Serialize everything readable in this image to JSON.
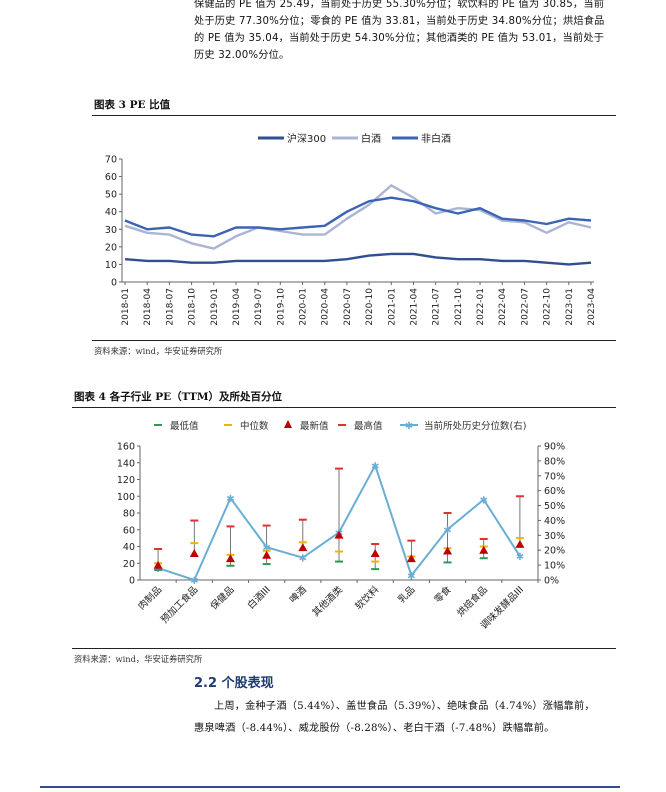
{
  "intro_lines": [
    "保健品的 PE 值为 25.49，当前处于历史 55.30%分位；软饮料的 PE 值为 30.85，当前",
    "处于历史 77.30%分位；零食的 PE 值为 33.81，当前处于历史 34.80%分位；烘焙食品",
    "的 PE 值为 35.04，当前处于历史 54.30%分位；其他酒类的 PE 值为 53.01，当前处于",
    "历史 32.00%分位。"
  ],
  "figure3": {
    "title": "图表 3 PE 比值",
    "source": "资料来源：wind，华安证券研究所",
    "legend": [
      "沪深300",
      "白酒",
      "非白酒"
    ]
  },
  "figure4": {
    "title": "图表 4 各子行业 PE（TTM）及所处百分位",
    "source": "资料来源：wind，华安证券研究所",
    "legend": [
      "最低值",
      "中位数",
      "最新值",
      "最高值",
      "当前所处历史分位数(右)"
    ]
  },
  "section": {
    "number": "2.2",
    "title": "个股表现"
  },
  "body_lines": [
    "上周，金种子酒（5.44%）、盖世食品（5.39%）、绝味食品（4.74%）涨幅靠前，",
    "惠泉啤酒（-8.44%）、威龙股份（-8.28%）、老白干酒（-7.48%）跌幅靠前。"
  ],
  "colors": {
    "hs300": "#2f4f8f",
    "baijiu": "#aab4d4",
    "feibaijiu": "#3c64b4",
    "min": "#2a9a5a",
    "median": "#f0b400",
    "latest": "#c00000",
    "max": "#e03030",
    "pct": "#6aaed6"
  },
  "chart_data": [
    {
      "type": "line",
      "title": "",
      "x": [
        "2018-01",
        "2018-04",
        "2018-07",
        "2018-10",
        "2019-01",
        "2019-04",
        "2019-07",
        "2019-10",
        "2020-01",
        "2020-04",
        "2020-07",
        "2020-10",
        "2021-01",
        "2021-04",
        "2021-07",
        "2021-10",
        "2022-01",
        "2022-04",
        "2022-07",
        "2022-10",
        "2023-01",
        "2023-04"
      ],
      "ylim": [
        0,
        70
      ],
      "yticks": [
        0,
        10,
        20,
        30,
        40,
        50,
        60,
        70
      ],
      "series": [
        {
          "name": "沪深300",
          "values": [
            13,
            12,
            12,
            11,
            11,
            12,
            12,
            12,
            12,
            12,
            13,
            15,
            16,
            16,
            14,
            13,
            13,
            12,
            12,
            11,
            10,
            11
          ]
        },
        {
          "name": "白酒",
          "values": [
            32,
            28,
            27,
            22,
            19,
            26,
            31,
            29,
            27,
            27,
            36,
            44,
            55,
            48,
            39,
            42,
            41,
            35,
            34,
            28,
            34,
            31
          ]
        },
        {
          "name": "非白酒",
          "values": [
            35,
            30,
            31,
            27,
            26,
            31,
            31,
            30,
            31,
            32,
            40,
            46,
            48,
            46,
            42,
            39,
            42,
            36,
            35,
            33,
            36,
            35
          ]
        }
      ]
    },
    {
      "type": "scatter",
      "categories": [
        "肉制品",
        "预加工食品",
        "保健品",
        "白酒III",
        "啤酒",
        "其他酒类",
        "软饮料",
        "乳品",
        "零食",
        "烘焙食品",
        "调味发酵品III"
      ],
      "ylim": [
        0,
        160
      ],
      "yticks": [
        0,
        20,
        40,
        60,
        80,
        100,
        120,
        140,
        160
      ],
      "y2lim": [
        0,
        90
      ],
      "y2ticks": [
        "0%",
        "10%",
        "20%",
        "30%",
        "40%",
        "50%",
        "60%",
        "70%",
        "80%",
        "90%"
      ],
      "series": [
        {
          "name": "最低值",
          "values": [
            12,
            null,
            17,
            19,
            null,
            22,
            13,
            null,
            21,
            26,
            null
          ]
        },
        {
          "name": "中位数",
          "values": [
            20,
            44,
            30,
            35,
            45,
            34,
            22,
            28,
            38,
            40,
            50
          ]
        },
        {
          "name": "最新值",
          "values": [
            17,
            31,
            25,
            29,
            38,
            53,
            31,
            25,
            34,
            35,
            42
          ]
        },
        {
          "name": "最高值",
          "values": [
            37,
            71,
            64,
            65,
            72,
            133,
            43,
            47,
            80,
            49,
            100
          ]
        },
        {
          "name": "当前所处历史分位数(右)",
          "values": [
            8,
            0,
            55,
            22,
            15,
            32,
            77,
            3,
            34,
            54,
            16
          ]
        }
      ]
    }
  ]
}
